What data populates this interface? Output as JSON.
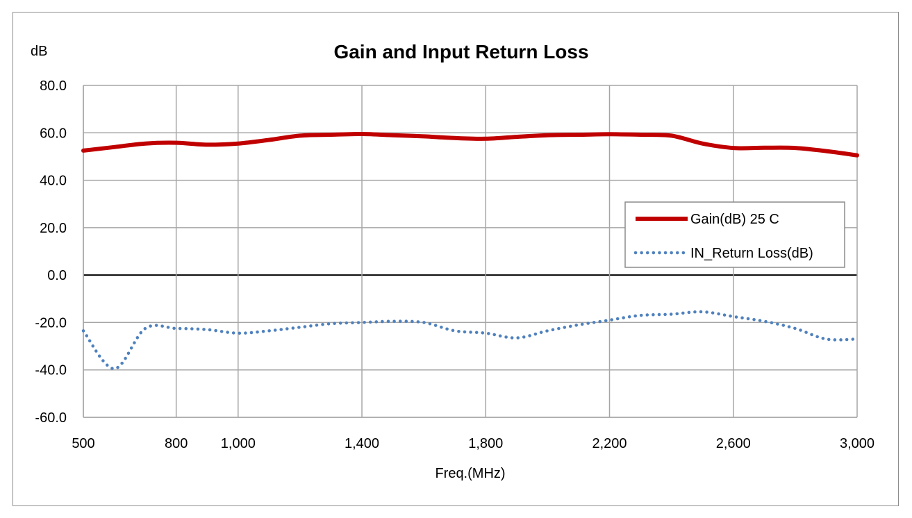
{
  "chart_data": {
    "type": "line",
    "title": "Gain and Input Return Loss",
    "xlabel": "Freq.(MHz)",
    "ylabel": "dB",
    "xlim": [
      500,
      3000
    ],
    "ylim": [
      -60,
      80
    ],
    "x_ticks": [
      500,
      800,
      1000,
      1400,
      1800,
      2200,
      2600,
      3000
    ],
    "x_tick_labels": [
      "500",
      "800",
      "1,000",
      "1,400",
      "1,800",
      "2,200",
      "2,600",
      "3,000"
    ],
    "y_ticks": [
      -60,
      -40,
      -20,
      0,
      20,
      40,
      60,
      80
    ],
    "y_tick_labels": [
      "-60.0",
      "-40.0",
      "-20.0",
      "0.0",
      "20.0",
      "40.0",
      "60.0",
      "80.0"
    ],
    "grid": true,
    "legend_position": "right",
    "series": [
      {
        "name": "Gain(dB) 25 C",
        "color": "#c00000",
        "style": "solid",
        "x": [
          500,
          600,
          700,
          800,
          900,
          1000,
          1100,
          1200,
          1300,
          1400,
          1500,
          1600,
          1700,
          1800,
          1900,
          2000,
          2100,
          2200,
          2300,
          2400,
          2500,
          2600,
          2700,
          2800,
          2900,
          3000
        ],
        "values": [
          52.5,
          54,
          55.5,
          55.8,
          55,
          55.5,
          57,
          58.8,
          59.2,
          59.5,
          59,
          58.5,
          57.8,
          57.5,
          58.3,
          59,
          59.2,
          59.4,
          59.2,
          58.8,
          55.5,
          53.6,
          53.7,
          53.6,
          52.3,
          50.5
        ]
      },
      {
        "name": "IN_Return Loss(dB)",
        "color": "#4f81bd",
        "style": "dotted",
        "x": [
          500,
          600,
          700,
          800,
          900,
          1000,
          1100,
          1200,
          1300,
          1400,
          1500,
          1600,
          1700,
          1800,
          1900,
          2000,
          2100,
          2200,
          2300,
          2400,
          2500,
          2600,
          2700,
          2800,
          2900,
          3000
        ],
        "values": [
          -23.5,
          -39.5,
          -22.5,
          -22.5,
          -23,
          -24.5,
          -23.5,
          -22,
          -20.5,
          -20,
          -19.5,
          -20,
          -23.5,
          -24.5,
          -26.5,
          -23.5,
          -21,
          -19,
          -17,
          -16.5,
          -15.5,
          -17.5,
          -19.5,
          -22.5,
          -27,
          -27
        ]
      }
    ]
  }
}
